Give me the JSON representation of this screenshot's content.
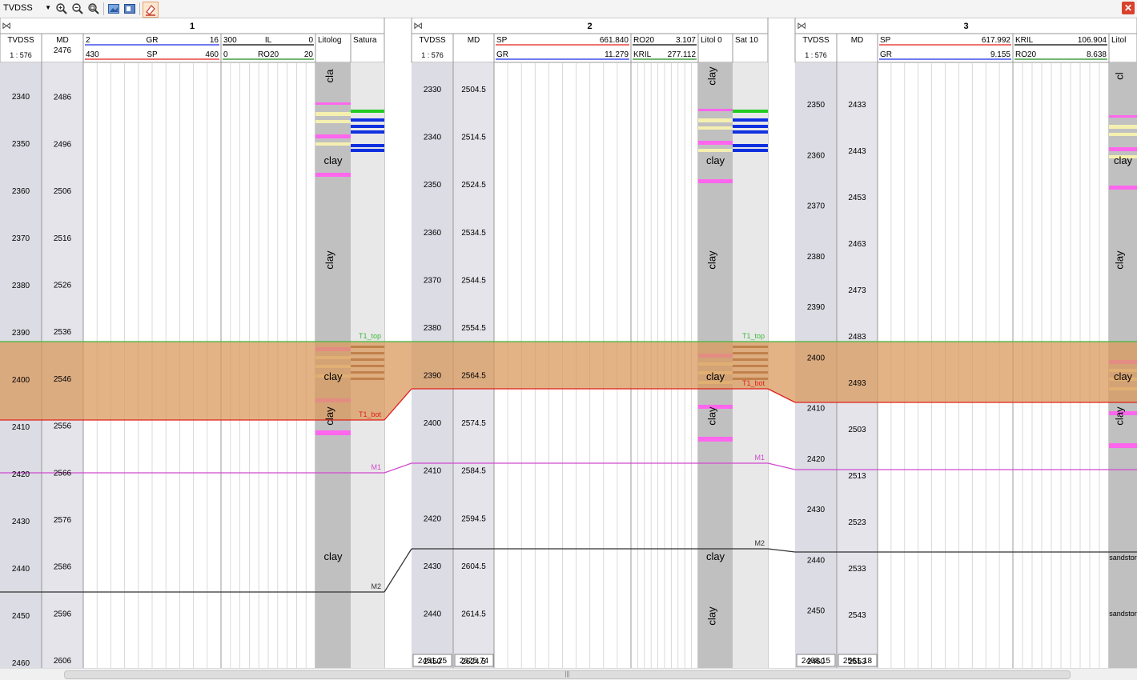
{
  "toolbar": {
    "depth_mode": "TVDSS",
    "buttons": [
      "zoom-in-icon",
      "zoom-out-icon",
      "zoom-fit-icon",
      "export-image-icon",
      "print-icon",
      "highlight-icon"
    ]
  },
  "colors": {
    "sp": "#e0201a",
    "gr": "#1a2ee0",
    "il": "#000000",
    "ro20": "#1e8a1e",
    "zone_fill": "#d99a5e",
    "t1_top": "#3cb83c",
    "t1_bot": "#e0201a",
    "m1": "#d04ad0",
    "m2": "#333333",
    "clay": "#c0c0c0",
    "depth_bg": "#dcdce4"
  },
  "wells": [
    {
      "name": "1",
      "depth_header": "TVDSS",
      "md_header": "MD",
      "scale": "1 : 576",
      "tvdss_ticks": [
        "2340",
        "2350",
        "2360",
        "2370",
        "2380",
        "2390",
        "2400",
        "2410",
        "2420",
        "2430",
        "2440",
        "2450",
        "2460"
      ],
      "md_ticks": [
        "2476",
        "2486",
        "2496",
        "2506",
        "2516",
        "2526",
        "2536",
        "2546",
        "2556",
        "2566",
        "2576",
        "2586",
        "2596",
        "2606"
      ],
      "curve_headers": [
        {
          "left": "2",
          "name": "GR",
          "right": "16",
          "color": "gr"
        },
        {
          "left": "430",
          "name": "SP",
          "right": "460",
          "color": "sp"
        },
        {
          "left": "300",
          "name": "IL",
          "right": "0",
          "color": "il"
        },
        {
          "left": "0",
          "name": "RO20",
          "right": "20",
          "color": "ro20"
        }
      ],
      "track_headers": [
        "Litolog",
        "Satura"
      ],
      "lith_labels": [
        "cla",
        "clay",
        "clay",
        "clay",
        "clay",
        "clay"
      ],
      "markers": [
        "T1_top",
        "T1_bot",
        "M1",
        "M2"
      ]
    },
    {
      "name": "2",
      "depth_header": "TVDSS",
      "md_header": "MD",
      "scale": "1 : 576",
      "tvdss_ticks": [
        "2330",
        "2340",
        "2350",
        "2360",
        "2370",
        "2380",
        "2390",
        "2400",
        "2410",
        "2420",
        "2430",
        "2440",
        "2450"
      ],
      "md_ticks": [
        "2504.5",
        "2514.5",
        "2524.5",
        "2534.5",
        "2544.5",
        "2554.5",
        "2564.5",
        "2574.5",
        "2584.5",
        "2594.5",
        "2604.5",
        "2614.5",
        "2624.5"
      ],
      "curve_headers": [
        {
          "left": "SP",
          "name": "",
          "right": "661.840",
          "color": "sp"
        },
        {
          "left": "GR",
          "name": "",
          "right": "11.279",
          "color": "gr"
        },
        {
          "left": "RO20",
          "name": "",
          "right": "3.107",
          "color": "il"
        },
        {
          "left": "KRIL",
          "name": "",
          "right": "277.112",
          "color": "ro20"
        }
      ],
      "track_headers": [
        "Litol 0",
        "Sat 10"
      ],
      "lith_labels": [
        "clay",
        "clay",
        "clay",
        "clay",
        "clay",
        "clay",
        "clay",
        "clay"
      ],
      "markers": [
        "T1_top",
        "T1_bot",
        "M1",
        "M2"
      ],
      "readout": [
        "2451.25",
        "2625.74"
      ]
    },
    {
      "name": "3",
      "depth_header": "TVDSS",
      "md_header": "MD",
      "scale": "1 : 576",
      "tvdss_ticks": [
        "2350",
        "2360",
        "2370",
        "2380",
        "2390",
        "2400",
        "2410",
        "2420",
        "2430",
        "2440",
        "2450",
        "2460"
      ],
      "md_ticks": [
        "2433",
        "2443",
        "2453",
        "2463",
        "2473",
        "2483",
        "2493",
        "2503",
        "2513",
        "2523",
        "2533",
        "2543",
        "2553"
      ],
      "curve_headers": [
        {
          "left": "SP",
          "name": "",
          "right": "617.992",
          "color": "sp"
        },
        {
          "left": "GR",
          "name": "",
          "right": "9.155",
          "color": "gr"
        },
        {
          "left": "KRIL",
          "name": "",
          "right": "106.904",
          "color": "il"
        },
        {
          "left": "RO20",
          "name": "",
          "right": "8.638",
          "color": "ro20"
        }
      ],
      "track_headers": [
        "Litol"
      ],
      "lith_labels": [
        "cl",
        "clay",
        "clay",
        "clay",
        "clay",
        "sandstor",
        "sandstor",
        "sandstor",
        "sandstor",
        "clay"
      ],
      "readout": [
        "2468.15",
        "2561.18"
      ]
    }
  ]
}
